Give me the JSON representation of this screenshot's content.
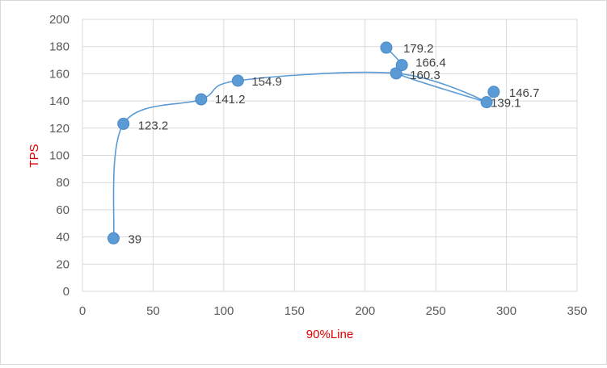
{
  "chart_data": {
    "type": "scatter",
    "title": "",
    "xlabel": "90%Line",
    "ylabel": "TPS",
    "xlim": [
      0,
      350
    ],
    "ylim": [
      0,
      200
    ],
    "x_ticks": [
      0,
      50,
      100,
      150,
      200,
      250,
      300,
      350
    ],
    "y_ticks": [
      0,
      20,
      40,
      60,
      80,
      100,
      120,
      140,
      160,
      180,
      200
    ],
    "grid": "vertical and horizontal",
    "smooth_line": true,
    "series": [
      {
        "points": [
          {
            "x": 22,
            "y": 39,
            "label": "39"
          },
          {
            "x": 29,
            "y": 123.2,
            "label": "123.2"
          },
          {
            "x": 84,
            "y": 141.2,
            "label": "141.2"
          },
          {
            "x": 110,
            "y": 154.9,
            "label": "154.9"
          },
          {
            "x": 222,
            "y": 160.3,
            "label": "160.3"
          },
          {
            "x": 226,
            "y": 166.4,
            "label": "166.4"
          },
          {
            "x": 215,
            "y": 179.2,
            "label": "179.2"
          },
          {
            "x": 286,
            "y": 139.1,
            "label": "139.1"
          },
          {
            "x": 291,
            "y": 146.7,
            "label": "146.7"
          }
        ],
        "line_path": [
          0,
          1,
          2,
          3,
          4,
          7,
          4,
          5,
          6
        ],
        "marker_color": "#5b9bd5",
        "line_color": "#5b9bd5"
      }
    ]
  }
}
